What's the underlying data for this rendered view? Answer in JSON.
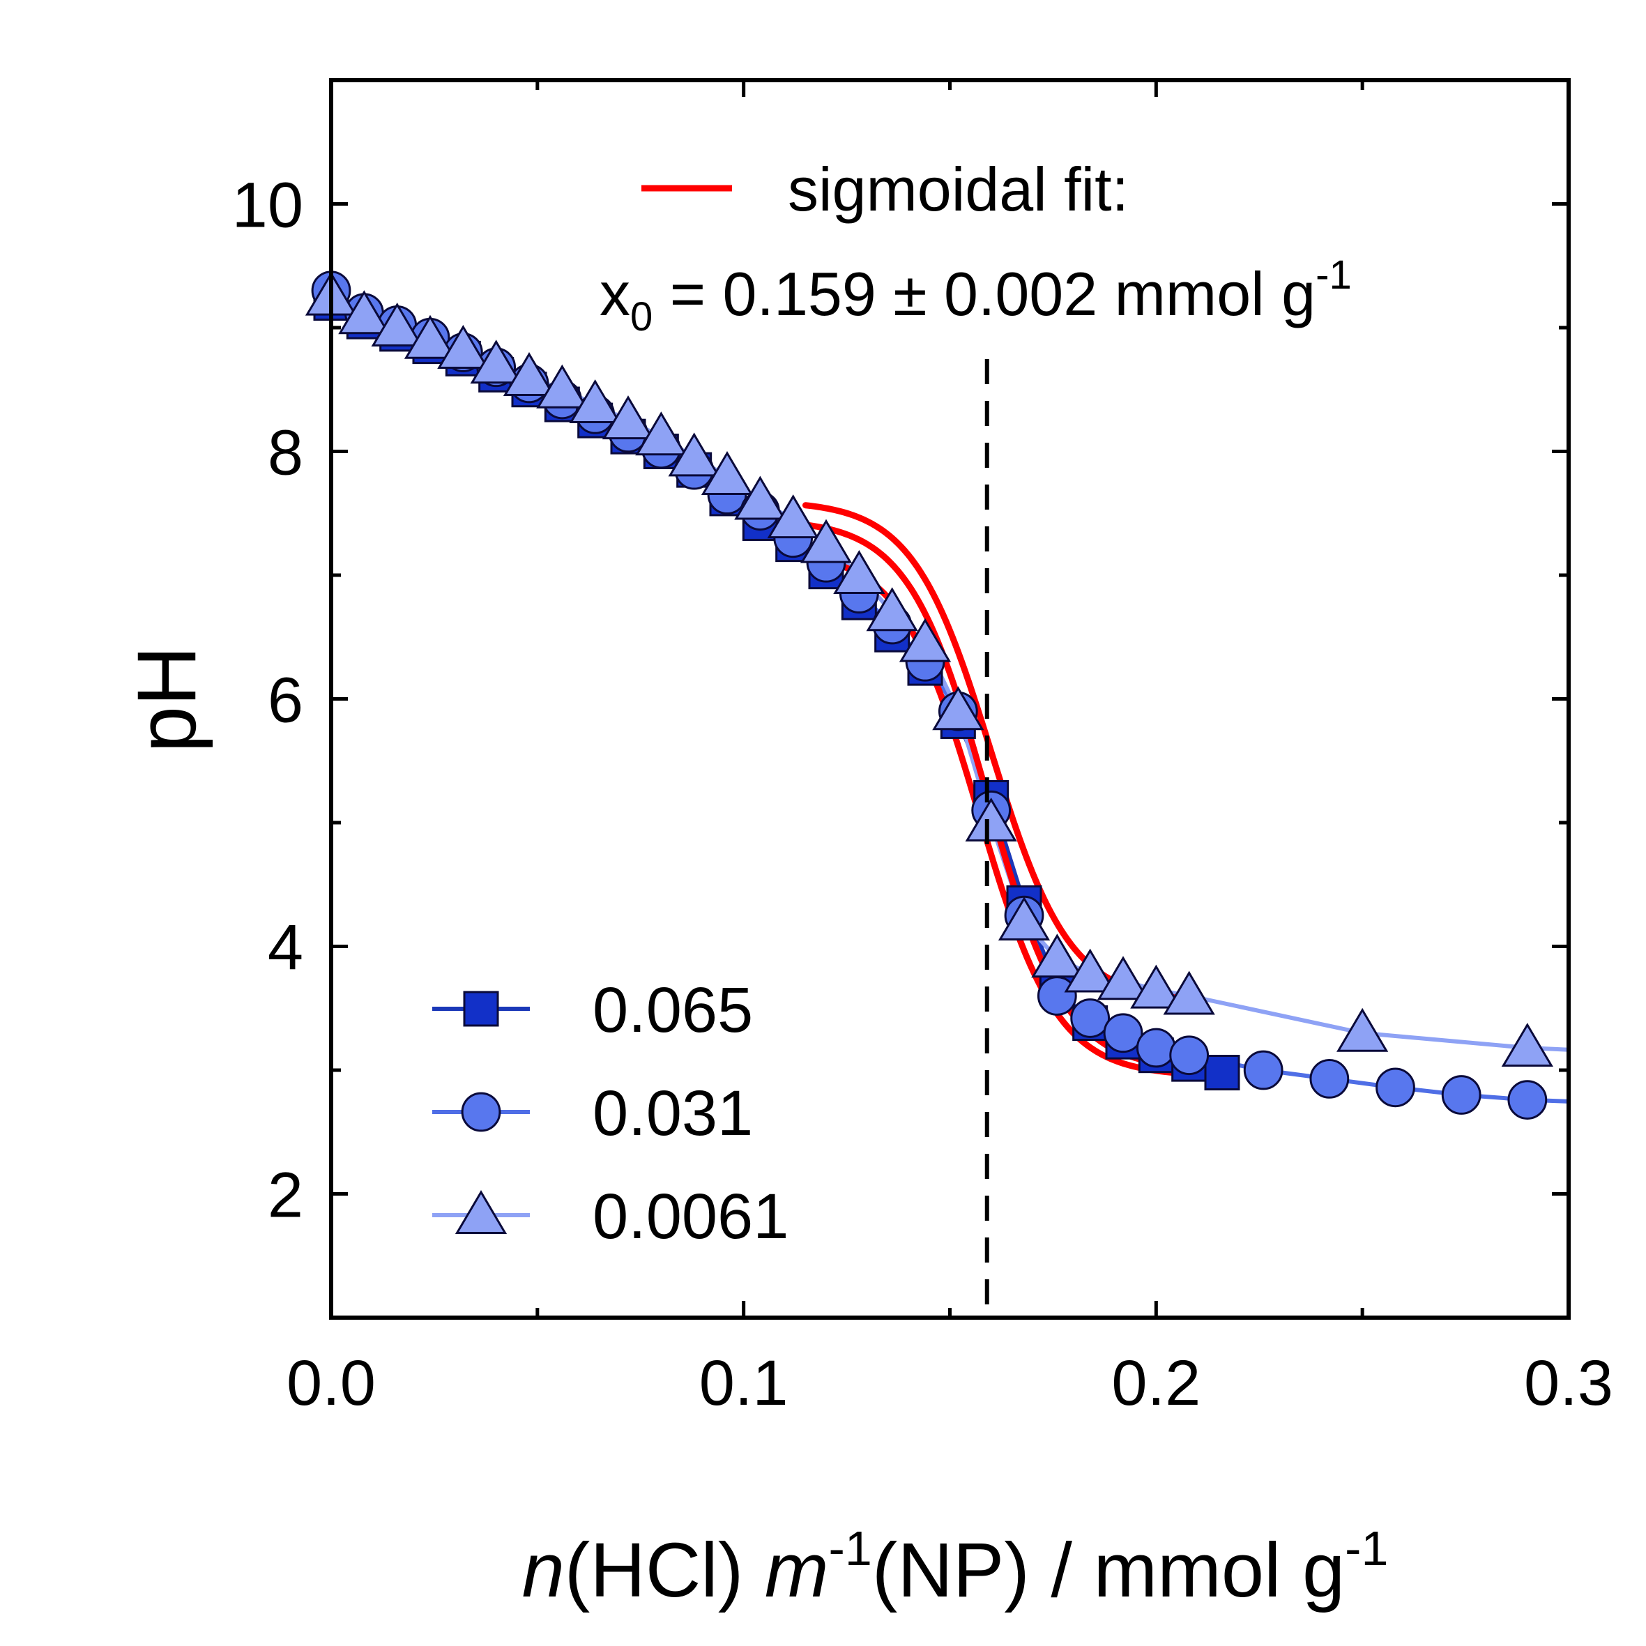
{
  "chart_data": {
    "type": "scatter",
    "title": "",
    "xlabel_parts": [
      "n",
      "(HCl) ",
      "m",
      "-1",
      "(NP) / mmol g",
      "-1"
    ],
    "ylabel": "pH",
    "xlim": [
      0.0,
      0.3
    ],
    "ylim": [
      1.0,
      11.0
    ],
    "xticks": [
      "0.0",
      "0.1",
      "0.2",
      "0.3"
    ],
    "xtick_values": [
      0.0,
      0.1,
      0.2,
      0.3
    ],
    "yticks": [
      "2",
      "4",
      "6",
      "8",
      "10"
    ],
    "ytick_values": [
      2,
      4,
      6,
      8,
      10
    ],
    "grid": false,
    "legend_position": "bottom-left",
    "fit_legend_label": "sigmoidal fit:",
    "fit_result": {
      "prefix": "x",
      "subscript": "0",
      "text": " = 0.159 ± 0.002 mmol g",
      "superscript": "-1"
    },
    "x0": 0.159,
    "series": [
      {
        "name": "0.065",
        "marker": "square",
        "color": "#1230c8",
        "line_color": "#1a38b8",
        "x": [
          0.0,
          0.008,
          0.016,
          0.024,
          0.032,
          0.04,
          0.048,
          0.056,
          0.064,
          0.072,
          0.08,
          0.088,
          0.096,
          0.104,
          0.112,
          0.12,
          0.128,
          0.136,
          0.144,
          0.152,
          0.16,
          0.168,
          0.176,
          0.184,
          0.192,
          0.2,
          0.208,
          0.216
        ],
        "y": [
          9.2,
          9.05,
          8.95,
          8.85,
          8.75,
          8.62,
          8.5,
          8.38,
          8.25,
          8.12,
          8.0,
          7.85,
          7.62,
          7.42,
          7.25,
          7.03,
          6.78,
          6.52,
          6.25,
          5.82,
          5.2,
          4.35,
          3.67,
          3.38,
          3.23,
          3.12,
          3.05,
          2.98
        ]
      },
      {
        "name": "0.031",
        "marker": "circle",
        "color": "#5877ee",
        "line_color": "#4f6ee6",
        "x": [
          0.0,
          0.008,
          0.016,
          0.024,
          0.032,
          0.04,
          0.048,
          0.056,
          0.064,
          0.072,
          0.08,
          0.088,
          0.096,
          0.104,
          0.112,
          0.12,
          0.128,
          0.136,
          0.144,
          0.152,
          0.16,
          0.168,
          0.176,
          0.184,
          0.192,
          0.2,
          0.208,
          0.226,
          0.242,
          0.258,
          0.274,
          0.29
        ],
        "y": [
          9.3,
          9.12,
          9.02,
          8.92,
          8.8,
          8.68,
          8.55,
          8.42,
          8.3,
          8.15,
          8.02,
          7.85,
          7.65,
          7.52,
          7.3,
          7.1,
          6.85,
          6.6,
          6.3,
          5.9,
          5.1,
          4.25,
          3.6,
          3.42,
          3.3,
          3.18,
          3.12,
          3.0,
          2.93,
          2.86,
          2.8,
          2.76
        ]
      },
      {
        "name": "0.0061",
        "marker": "triangle",
        "color": "#8ea2f5",
        "line_color": "#8ea2f5",
        "x": [
          0.0,
          0.008,
          0.016,
          0.024,
          0.032,
          0.04,
          0.048,
          0.056,
          0.064,
          0.072,
          0.08,
          0.088,
          0.096,
          0.104,
          0.112,
          0.12,
          0.128,
          0.136,
          0.144,
          0.152,
          0.16,
          0.168,
          0.176,
          0.184,
          0.192,
          0.2,
          0.208,
          0.25,
          0.29
        ],
        "y": [
          9.25,
          9.1,
          9.0,
          8.9,
          8.82,
          8.7,
          8.6,
          8.5,
          8.38,
          8.25,
          8.12,
          7.95,
          7.8,
          7.6,
          7.45,
          7.25,
          7.0,
          6.7,
          6.45,
          5.9,
          5.0,
          4.2,
          3.9,
          3.78,
          3.72,
          3.65,
          3.6,
          3.3,
          3.18
        ]
      }
    ],
    "fits": [
      {
        "name": "fit-0.065",
        "color": "#ff0000",
        "x_range": [
          0.113,
          0.21
        ],
        "A1": 7.2,
        "A2": 2.95,
        "x0": 0.157,
        "dx": 0.0095
      },
      {
        "name": "fit-0.031",
        "color": "#ff0000",
        "x_range": [
          0.113,
          0.21
        ],
        "A1": 7.45,
        "A2": 3.0,
        "x0": 0.159,
        "dx": 0.0095
      },
      {
        "name": "fit-0.0061",
        "color": "#ff0000",
        "x_range": [
          0.115,
          0.208
        ],
        "A1": 7.6,
        "A2": 3.55,
        "x0": 0.16,
        "dx": 0.0095
      }
    ]
  }
}
